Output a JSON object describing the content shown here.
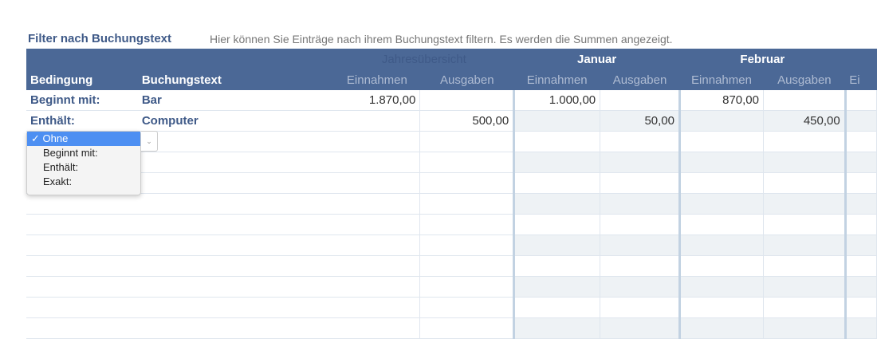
{
  "title": "Filter nach Buchungstext",
  "description": "Hier können Sie Einträge nach ihrem Buchungstext filtern. Es werden die Summen angezeigt.",
  "header": {
    "year": "Jahresübersicht",
    "months": [
      "Januar",
      "Februar"
    ],
    "bedingung": "Bedingung",
    "buchungstext": "Buchungstext",
    "einnahmen": "Einnahmen",
    "ausgaben": "Ausgaben",
    "next_partial": "Ei"
  },
  "rows": [
    {
      "bedingung": "Beginnt mit:",
      "text": "Bar",
      "year_in": "1.870,00",
      "year_out": "",
      "jan_in": "1.000,00",
      "jan_out": "",
      "feb_in": "870,00",
      "feb_out": ""
    },
    {
      "bedingung": "Enthält:",
      "text": "Computer",
      "year_in": "",
      "year_out": "500,00",
      "jan_in": "",
      "jan_out": "50,00",
      "feb_in": "",
      "feb_out": "450,00"
    }
  ],
  "dropdown": {
    "selected": "✓ Ohne",
    "options": [
      "Beginnt mit:",
      "Enthält:",
      "Exakt:"
    ]
  }
}
